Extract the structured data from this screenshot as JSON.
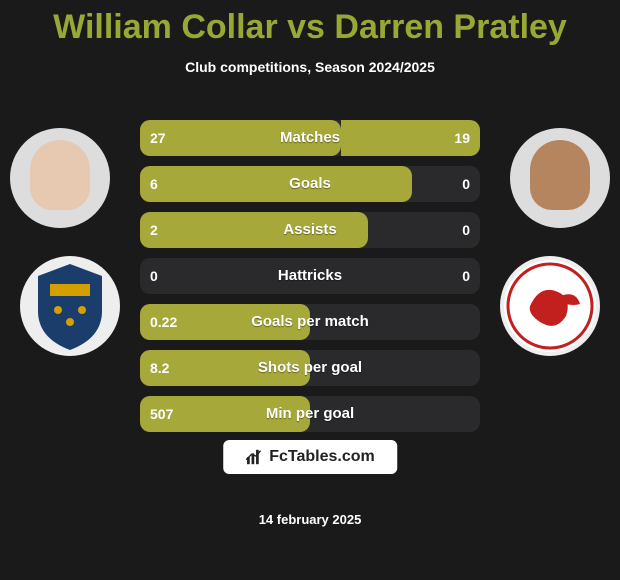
{
  "title": "William Collar vs Darren Pratley",
  "subtitle": "Club competitions, Season 2024/2025",
  "date": "14 february 2025",
  "brand": "FcTables.com",
  "colors": {
    "accent": "#99a835",
    "bar": "#a7a83a",
    "bar_bg": "#2a2a2c",
    "bg": "#1a1a1a"
  },
  "players": {
    "left": {
      "name": "William Collar"
    },
    "right": {
      "name": "Darren Pratley"
    }
  },
  "stats": [
    {
      "label": "Matches",
      "left_text": "27",
      "right_text": "19",
      "left_pct": 59,
      "right_pct": 41
    },
    {
      "label": "Goals",
      "left_text": "6",
      "right_text": "0",
      "left_pct": 80,
      "right_pct": 0
    },
    {
      "label": "Assists",
      "left_text": "2",
      "right_text": "0",
      "left_pct": 67,
      "right_pct": 0
    },
    {
      "label": "Hattricks",
      "left_text": "0",
      "right_text": "0",
      "left_pct": 0,
      "right_pct": 0
    },
    {
      "label": "Goals per match",
      "left_text": "0.22",
      "right_text": "",
      "left_pct": 50,
      "right_pct": 0
    },
    {
      "label": "Shots per goal",
      "left_text": "8.2",
      "right_text": "",
      "left_pct": 50,
      "right_pct": 0
    },
    {
      "label": "Min per goal",
      "left_text": "507",
      "right_text": "",
      "left_pct": 50,
      "right_pct": 0
    }
  ]
}
